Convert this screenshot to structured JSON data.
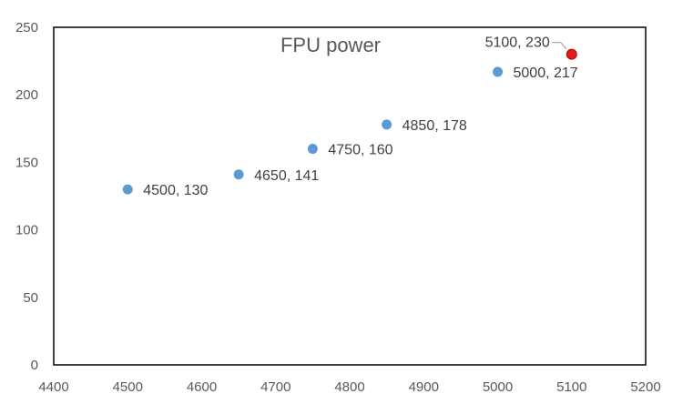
{
  "chart_data": {
    "type": "scatter",
    "title": "FPU power",
    "xlabel": "",
    "ylabel": "",
    "xlim": [
      4400,
      5200
    ],
    "ylim": [
      0,
      250
    ],
    "x_ticks": [
      4400,
      4500,
      4600,
      4700,
      4800,
      4900,
      5000,
      5100,
      5200
    ],
    "y_ticks": [
      0,
      50,
      100,
      150,
      200,
      250
    ],
    "grid": false,
    "legend": "none",
    "series": [
      {
        "points": [
          {
            "x": 4500,
            "y": 130,
            "label": "4500, 130"
          },
          {
            "x": 4650,
            "y": 141,
            "label": "4650, 141"
          },
          {
            "x": 4750,
            "y": 160,
            "label": "4750, 160"
          },
          {
            "x": 4850,
            "y": 178,
            "label": "4850, 178"
          },
          {
            "x": 5000,
            "y": 217,
            "label": "5000, 217"
          },
          {
            "x": 5100,
            "y": 230,
            "label": "5100, 230",
            "highlight": true
          }
        ]
      }
    ],
    "colors": {
      "point": "#5b9bd5",
      "highlight": "#e31a1c",
      "highlight_stroke": "#c00000",
      "axis": "#000000",
      "leader": "#a6a6a6"
    }
  }
}
